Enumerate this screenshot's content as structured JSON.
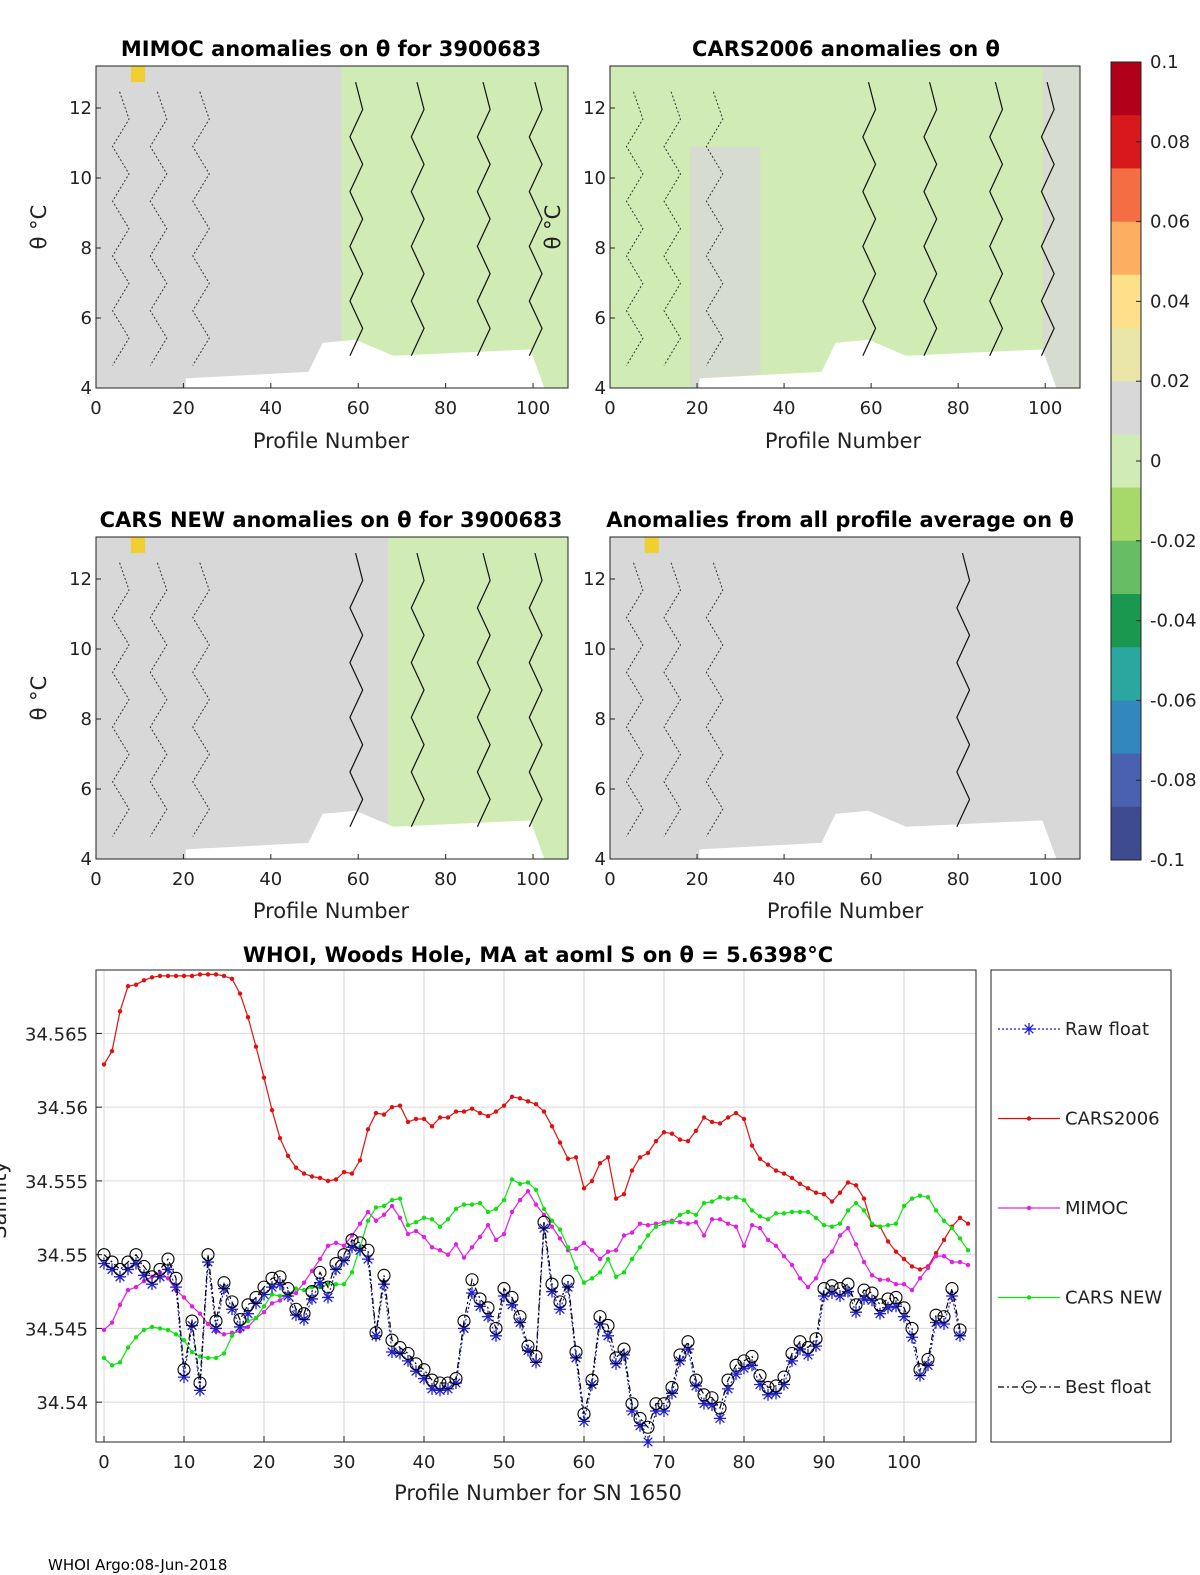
{
  "footer": "WHOI Argo:08-Jun-2018",
  "colors": {
    "raw_float": "#1f1fcf",
    "cars2006": "#e01010",
    "mimoc": "#e020e0",
    "cars_new": "#10e010",
    "best_float": "#000000",
    "grid": "#d9d9d9",
    "panel_gray": "#d8d8d8",
    "panel_green": "#d0ebb4"
  },
  "chart_data": [
    {
      "type": "heatmap",
      "title": "MIMOC anomalies on θ  for 3900683",
      "xlabel": "Profile Number",
      "ylabel": "θ °C",
      "xlim": [
        0,
        108
      ],
      "ylim": [
        4,
        13.2
      ],
      "xticks": [
        "0",
        "20",
        "40",
        "60",
        "80",
        "100"
      ],
      "yticks": [
        "4",
        "6",
        "8",
        "10",
        "12"
      ],
      "dominant_anomaly": "≈0 for profiles 0–55, slightly negative (≈-0.01) for profiles 55–105"
    },
    {
      "type": "heatmap",
      "title": "CARS2006 anomalies on θ",
      "xlabel": "Profile Number",
      "ylabel": "θ °C",
      "xlim": [
        0,
        108
      ],
      "ylim": [
        4,
        13.2
      ],
      "xticks": [
        "0",
        "20",
        "40",
        "60",
        "80",
        "100"
      ],
      "yticks": [
        "4",
        "6",
        "8",
        "10",
        "12"
      ],
      "dominant_anomaly": "negative (≈-0.01 to -0.02) across most profiles"
    },
    {
      "type": "heatmap",
      "title": "CARS NEW anomalies on θ for 3900683",
      "xlabel": "Profile Number",
      "ylabel": "θ °C",
      "xlim": [
        0,
        108
      ],
      "ylim": [
        4,
        13.2
      ],
      "xticks": [
        "0",
        "20",
        "40",
        "60",
        "80",
        "100"
      ],
      "yticks": [
        "4",
        "6",
        "8",
        "10",
        "12"
      ],
      "dominant_anomaly": "≈0 for profiles 0–60, slightly negative for profiles 70–105"
    },
    {
      "type": "heatmap",
      "title": "Anomalies from all profile average on θ",
      "xlabel": "Profile Number",
      "ylabel": "",
      "xlim": [
        0,
        108
      ],
      "ylim": [
        4,
        13.2
      ],
      "xticks": [
        "0",
        "20",
        "40",
        "60",
        "80",
        "100"
      ],
      "yticks": [
        "4",
        "6",
        "8",
        "10",
        "12"
      ],
      "dominant_anomaly": "≈0 everywhere"
    },
    {
      "type": "colorbar",
      "range": [
        -0.1,
        0.1
      ],
      "ticks": [
        "0.1",
        "0.08",
        "0.06",
        "0.04",
        "0.02",
        "0",
        "-0.02",
        "-0.04",
        "-0.06",
        "-0.08",
        "-0.1"
      ],
      "colors": [
        "#b2001a",
        "#d7191c",
        "#f46d43",
        "#fdae61",
        "#fee08b",
        "#e9e6a8",
        "#d8d8d8",
        "#d0ebb4",
        "#a6d96a",
        "#66bd63",
        "#1a9850",
        "#2ca7a0",
        "#3288bd",
        "#4a60b0",
        "#3d4a90"
      ]
    },
    {
      "type": "line",
      "title": "WHOI, Woods Hole, MA at aoml S on θ = 5.6398°C",
      "xlabel": "Profile Number for SN 1650",
      "ylabel": "Salinity",
      "xlim": [
        -1,
        109
      ],
      "ylim": [
        34.5373,
        34.5693
      ],
      "xticks": [
        "0",
        "10",
        "20",
        "30",
        "40",
        "50",
        "60",
        "70",
        "80",
        "90",
        "100"
      ],
      "yticks": [
        "34.54",
        "34.545",
        "34.55",
        "34.555",
        "34.56",
        "34.565"
      ],
      "legend_position": "right",
      "series": [
        {
          "name": "Raw float",
          "key": "raw_float",
          "values": [
            34.5494,
            34.549,
            34.5485,
            34.549,
            34.5494,
            34.5486,
            34.548,
            34.5485,
            34.549,
            34.5478,
            34.5417,
            34.5452,
            34.5408,
            34.5495,
            34.545,
            34.5477,
            34.5463,
            34.5451,
            34.546,
            34.5467,
            34.5473,
            34.5478,
            34.548,
            34.5472,
            34.5459,
            34.5456,
            34.547,
            34.5481,
            34.5471,
            34.549,
            34.5496,
            34.5505,
            34.5503,
            34.5497,
            34.5445,
            34.548,
            34.5434,
            34.5433,
            34.5428,
            34.5421,
            34.5416,
            34.5409,
            34.5408,
            34.5409,
            34.5413,
            34.545,
            34.5474,
            34.5465,
            34.5458,
            34.5445,
            34.5472,
            34.5466,
            34.5454,
            34.5435,
            34.5427,
            34.5518,
            34.5475,
            34.5463,
            34.5478,
            34.543,
            34.5387,
            34.5412,
            34.5453,
            34.5445,
            34.5426,
            34.5432,
            34.5394,
            34.5384,
            34.5373,
            34.5394,
            34.5394,
            34.5406,
            34.5428,
            34.5436,
            34.5411,
            34.5399,
            34.5398,
            34.5389,
            34.5409,
            34.5419,
            34.5423,
            34.5425,
            34.5412,
            34.5405,
            34.5406,
            34.5412,
            34.5428,
            34.5436,
            34.5432,
            34.5438,
            34.5472,
            34.5474,
            34.5472,
            34.5475,
            34.5461,
            34.547,
            34.5469,
            34.546,
            34.5464,
            34.5465,
            34.5458,
            34.5444,
            34.5418,
            34.5425,
            34.5454,
            34.5453,
            34.5472,
            34.5445
          ]
        },
        {
          "name": "CARS2006",
          "key": "cars2006",
          "values": [
            34.5629,
            34.5638,
            34.5665,
            34.5682,
            34.5683,
            34.5686,
            34.5688,
            34.5689,
            34.5689,
            34.5689,
            34.5689,
            34.5689,
            34.569,
            34.569,
            34.569,
            34.5689,
            34.5687,
            34.5677,
            34.5661,
            34.5641,
            34.562,
            34.5598,
            34.5579,
            34.5567,
            34.5559,
            34.5555,
            34.5553,
            34.5552,
            34.555,
            34.5551,
            34.5556,
            34.5555,
            34.5564,
            34.5585,
            34.5596,
            34.5595,
            34.56,
            34.5601,
            34.559,
            34.5592,
            34.5592,
            34.5587,
            34.5593,
            34.5593,
            34.5597,
            34.5597,
            34.5599,
            34.5596,
            34.5594,
            34.5597,
            34.5601,
            34.5607,
            34.5606,
            34.5604,
            34.5602,
            34.5597,
            34.5587,
            34.5576,
            34.5565,
            34.5566,
            34.5545,
            34.555,
            34.5562,
            34.5566,
            34.5538,
            34.5541,
            34.5557,
            34.5566,
            34.5569,
            34.5577,
            34.5583,
            34.5582,
            34.5578,
            34.5577,
            34.5584,
            34.5593,
            34.559,
            34.5589,
            34.5593,
            34.5596,
            34.5592,
            34.5574,
            34.5565,
            34.5561,
            34.5557,
            34.5555,
            34.5552,
            34.5548,
            34.5545,
            34.5542,
            34.5541,
            34.5536,
            34.5542,
            34.5549,
            34.5547,
            34.5538,
            34.552,
            34.5519,
            34.5509,
            34.5502,
            34.5497,
            34.5492,
            34.549,
            34.5492,
            34.5501,
            34.551,
            34.5519,
            34.5525,
            34.5521
          ]
        },
        {
          "name": "MIMOC",
          "key": "mimoc",
          "values": [
            34.5449,
            34.5454,
            34.5466,
            34.5476,
            34.5478,
            34.5482,
            34.5485,
            34.5488,
            34.5484,
            34.5476,
            34.5471,
            34.5465,
            34.546,
            34.5453,
            34.5448,
            34.5446,
            34.5447,
            34.5448,
            34.5451,
            34.5457,
            34.5461,
            34.5467,
            34.5469,
            34.5473,
            34.5474,
            34.5481,
            34.5489,
            34.5497,
            34.5506,
            34.5508,
            34.5506,
            34.5513,
            34.5521,
            34.5529,
            34.5523,
            34.5527,
            34.5533,
            34.5525,
            34.5514,
            34.5516,
            34.5512,
            34.5505,
            34.5503,
            34.55,
            34.5507,
            34.5498,
            34.5505,
            34.5512,
            34.552,
            34.551,
            34.5514,
            34.5529,
            34.5537,
            34.5543,
            34.5534,
            34.5527,
            34.5519,
            34.5511,
            34.5503,
            34.5504,
            34.5508,
            34.5503,
            34.5497,
            34.5502,
            34.5503,
            34.5513,
            34.5515,
            34.5521,
            34.552,
            34.5521,
            34.5522,
            34.5523,
            34.5522,
            34.5521,
            34.5522,
            34.5513,
            34.5524,
            34.5524,
            34.5521,
            34.5519,
            34.5506,
            34.552,
            34.5518,
            34.551,
            34.5506,
            34.5499,
            34.5493,
            34.5484,
            34.5478,
            34.5484,
            34.5496,
            34.5502,
            34.5513,
            34.5518,
            34.5507,
            34.5495,
            34.5486,
            34.5483,
            34.5483,
            34.548,
            34.548,
            34.5476,
            34.5484,
            34.5491,
            34.5499,
            34.5499,
            34.5495,
            34.5495,
            34.5493
          ]
        },
        {
          "name": "CARS NEW",
          "key": "cars_new",
          "values": [
            34.543,
            34.5425,
            34.5427,
            34.5437,
            34.5444,
            34.5449,
            34.5451,
            34.545,
            34.5449,
            34.5446,
            34.5442,
            34.5434,
            34.5431,
            34.543,
            34.543,
            34.5433,
            34.5445,
            34.5451,
            34.5455,
            34.5457,
            34.5465,
            34.5473,
            34.5472,
            34.5473,
            34.5477,
            34.5476,
            34.5478,
            34.5478,
            34.548,
            34.548,
            34.548,
            34.5488,
            34.5505,
            34.5523,
            34.5532,
            34.5533,
            34.5537,
            34.5538,
            34.552,
            34.5522,
            34.5525,
            34.5524,
            34.5519,
            34.5524,
            34.5531,
            34.5534,
            34.5534,
            34.5535,
            34.5529,
            34.5531,
            34.5537,
            34.5551,
            34.5548,
            34.5549,
            34.5544,
            34.5531,
            34.5523,
            34.5517,
            34.5505,
            34.5491,
            34.5481,
            34.5484,
            34.5488,
            34.5497,
            34.5485,
            34.5488,
            34.5497,
            34.5505,
            34.5513,
            34.5519,
            34.5521,
            34.5522,
            34.5527,
            34.5529,
            34.5527,
            34.5535,
            34.5536,
            34.5539,
            34.5538,
            34.5539,
            34.5537,
            34.553,
            34.5526,
            34.5524,
            34.5528,
            34.5528,
            34.5529,
            34.5529,
            34.5529,
            34.5525,
            34.552,
            34.5519,
            34.5521,
            34.553,
            34.5535,
            34.553,
            34.5521,
            34.5519,
            34.552,
            34.5521,
            34.5533,
            34.5538,
            34.554,
            34.5539,
            34.553,
            34.5523,
            34.5518,
            34.5511,
            34.5503
          ]
        },
        {
          "name": "Best float",
          "key": "best_float",
          "values": [
            34.55,
            34.5495,
            34.549,
            34.5495,
            34.55,
            34.5492,
            34.5485,
            34.549,
            34.5497,
            34.5484,
            34.5422,
            34.5455,
            34.5413,
            34.55,
            34.5455,
            34.5481,
            34.5468,
            34.5456,
            34.5466,
            34.5471,
            34.5478,
            34.5484,
            34.5485,
            34.5477,
            34.5463,
            34.546,
            34.5475,
            34.5488,
            34.5478,
            34.5494,
            34.55,
            34.551,
            34.5508,
            34.5503,
            34.5447,
            34.5486,
            34.5442,
            34.5437,
            34.5433,
            34.5426,
            34.5422,
            34.5415,
            34.5413,
            34.5413,
            34.5416,
            34.5455,
            34.5483,
            34.547,
            34.5464,
            34.545,
            34.5477,
            34.5471,
            34.5458,
            34.5438,
            34.5431,
            34.5522,
            34.548,
            34.5468,
            34.5482,
            34.5434,
            34.5392,
            34.5415,
            34.5458,
            34.5452,
            34.543,
            34.5436,
            34.5399,
            34.5389,
            34.5383,
            34.5399,
            34.5399,
            34.541,
            34.5432,
            34.5441,
            34.5415,
            34.5405,
            34.5403,
            34.5396,
            34.5415,
            34.5425,
            34.5428,
            34.5431,
            34.5418,
            34.541,
            34.5411,
            34.5417,
            34.5433,
            34.5441,
            34.5437,
            34.5443,
            34.5477,
            34.5479,
            34.5477,
            34.548,
            34.5466,
            34.5476,
            34.5474,
            34.5466,
            34.547,
            34.5471,
            34.5464,
            34.545,
            34.5422,
            34.5429,
            34.5459,
            34.5458,
            34.5477,
            34.5449
          ]
        }
      ]
    }
  ]
}
